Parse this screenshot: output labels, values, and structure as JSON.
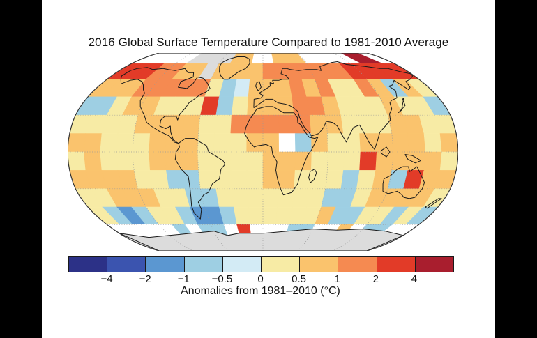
{
  "window": {
    "letterbox_color": "#000000",
    "panel_color": "#ffffff"
  },
  "chart_data": {
    "type": "heatmap",
    "projection": "robinson",
    "title": "2016 Global Surface Temperature Compared to 1981-2010 Average",
    "colorbar": {
      "caption": "Anomalies from 1981–2010 (°C)",
      "tick_labels": [
        "−4",
        "−2",
        "−1",
        "−0.5",
        "0",
        "0.5",
        "1",
        "2",
        "4"
      ],
      "segment_colors": [
        "#2c3187",
        "#3b54af",
        "#5b97d1",
        "#9ecfe3",
        "#d3ebf5",
        "#f7eba5",
        "#fac36d",
        "#f58a51",
        "#e23b28",
        "#a91e2e"
      ],
      "outline_color": "#1a1a1a"
    },
    "anomaly_grid": {
      "description": "15-degree cells; rows from 90N to 90S, columns from 180W to 180E; letters are anomaly bins (deg C) per palette",
      "palette": {
        "A": "#2c3187",
        "B": "#3b54af",
        "C": "#5b97d1",
        "D": "#9ecfe3",
        "E": "#d3ebf5",
        "Y": "#f7eba5",
        "O": "#fac36d",
        "R": "#f58a51",
        "X": "#e23b28",
        "Z": "#a91e2e",
        "G": "#dcdcdc",
        "W": "#ffffff"
      },
      "palette_bins": {
        "A": "below −4",
        "B": "−4 to −2",
        "C": "−2 to −1",
        "D": "−1 to −0.5",
        "E": "−0.5 to 0",
        "Y": "0 to 0.5",
        "O": "0.5 to 1",
        "R": "1 to 2",
        "X": "2 to 4",
        "Z": "above 4",
        "G": "no data (ice)",
        "W": "no data"
      },
      "rows": [
        "WWWWWGGGGOOWWOOOWWWWWZZW",
        "XXXRROOGOOOORRRRRRRXXXXX",
        "OOORRRRRYDEOOORORYYRODOY",
        "DDYOOYYYXDYOOORROYYYOYYD",
        "YYYYOOOOYYRRRRROOYYYOOYY",
        "OOYYYOOOYYYOOWDOYYOOOOYO",
        "YOYYYOOOYYYYOOOYYYXOOOOY",
        "OOOOYYDDYYYYOOYYYDYODXOO",
        "YYOOOYYDDYYYYYYYDDYOOOOY",
        "YDCDYYDCCDYYYYYYODDYYDYD",
        "WWWWWDWDDWXWWWDDWWOWDDWW",
        "GGGGGGGGGGGGGGGGGGGGGGGG"
      ]
    },
    "map_colors": {
      "ocean_nodata": "#ffffff",
      "antarctica_fill": "#dcdcdc",
      "coastline": "#1a1a1a",
      "graticule": "#999999",
      "outline": "#333333"
    }
  }
}
